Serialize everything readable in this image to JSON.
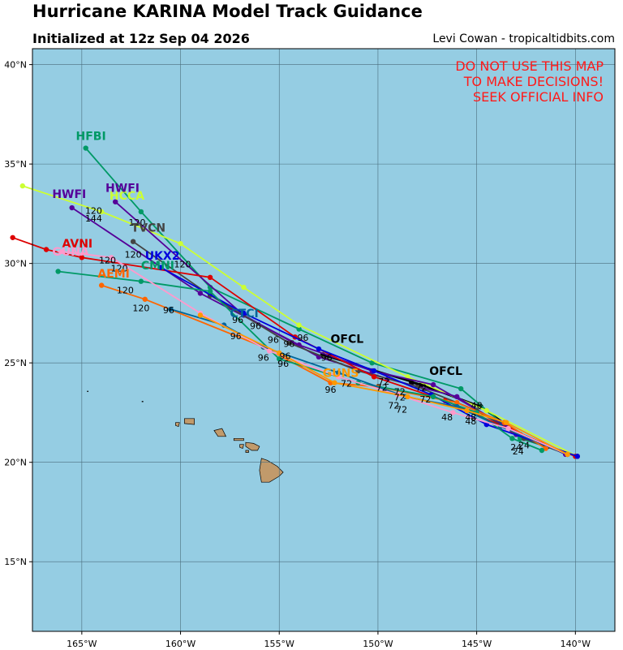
{
  "header": {
    "title": "Hurricane KARINA Model Track Guidance",
    "subtitle": "Initialized at 12z Sep 04 2026",
    "credit": "Levi Cowan - tropicaltidbits.com"
  },
  "warning": [
    "DO NOT USE THIS MAP",
    "TO MAKE DECISIONS!",
    "SEEK OFFICIAL INFO"
  ],
  "colors": {
    "ocean": "#95cde3",
    "land": "#c19a6b",
    "grid": "#4a6d7c",
    "warning": "#ff1a1a"
  },
  "map": {
    "lon_range": [
      -167.5,
      -138.0
    ],
    "lat_range": [
      11.5,
      40.8
    ],
    "lat_ticks": [
      {
        "value": 15,
        "label": "15°N"
      },
      {
        "value": 20,
        "label": "20°N"
      },
      {
        "value": 25,
        "label": "25°N"
      },
      {
        "value": 30,
        "label": "30°N"
      },
      {
        "value": 35,
        "label": "35°N"
      },
      {
        "value": 40,
        "label": "40°N"
      }
    ],
    "lon_ticks": [
      {
        "value": -165,
        "label": "165°W"
      },
      {
        "value": -160,
        "label": "160°W"
      },
      {
        "value": -155,
        "label": "155°W"
      },
      {
        "value": -150,
        "label": "150°W"
      },
      {
        "value": -145,
        "label": "145°W"
      },
      {
        "value": -140,
        "label": "140°W"
      }
    ]
  },
  "tracks": [
    {
      "name": "OFCL",
      "color": "#000000",
      "points": [
        [
          -140.4,
          20.4
        ],
        [
          -141.4,
          20.8
        ],
        [
          -142.8,
          21.4
        ],
        [
          -144.8,
          22.8
        ],
        [
          -147.8,
          23.9
        ],
        [
          -152.8,
          25.4
        ]
      ],
      "label_at": [
        -152.4,
        26.0
      ]
    },
    {
      "name": "OFCL",
      "color": "#000000",
      "points": [
        [
          -144.8,
          22.8
        ],
        [
          -147.8,
          23.9
        ],
        [
          -148.3,
          24.0
        ]
      ],
      "label_at": [
        -147.4,
        24.4
      ]
    },
    {
      "name": "HFBI",
      "color": "#009966",
      "points": [
        [
          -139.9,
          20.3
        ],
        [
          -142.8,
          21.2
        ],
        [
          -145.8,
          23.7
        ],
        [
          -150.3,
          25.0
        ],
        [
          -154.0,
          26.7
        ],
        [
          -158.5,
          28.8
        ],
        [
          -162.0,
          32.6
        ],
        [
          -164.8,
          35.8
        ]
      ],
      "label_at": [
        -165.3,
        36.2
      ]
    },
    {
      "name": "HCCA",
      "color": "#ccff33",
      "points": [
        [
          -139.9,
          20.3
        ],
        [
          -144.5,
          22.6
        ],
        [
          -148.5,
          24.3
        ],
        [
          -154.0,
          26.9
        ],
        [
          -156.8,
          28.8
        ],
        [
          -160.0,
          31.0
        ],
        [
          -164.0,
          32.6
        ],
        [
          -168.0,
          33.9
        ]
      ],
      "label_at": [
        -163.6,
        33.2
      ]
    },
    {
      "name": "HWFI",
      "color": "#550099",
      "points": [
        [
          -139.9,
          20.3
        ],
        [
          -143.0,
          21.4
        ],
        [
          -146.0,
          23.3
        ],
        [
          -149.5,
          24.2
        ],
        [
          -153.0,
          25.3
        ],
        [
          -156.8,
          27.4
        ],
        [
          -163.3,
          33.1
        ]
      ],
      "label_at": [
        -163.8,
        33.6
      ]
    },
    {
      "name": "HWFI",
      "color": "#550099",
      "points": [
        [
          -140.5,
          20.4
        ],
        [
          -143.5,
          21.8
        ],
        [
          -147.2,
          23.9
        ],
        [
          -150.3,
          24.6
        ],
        [
          -154.0,
          25.9
        ],
        [
          -159.0,
          28.5
        ],
        [
          -165.5,
          32.8
        ]
      ],
      "label_at": [
        -166.5,
        33.3
      ]
    },
    {
      "name": "TVCN",
      "color": "#444444",
      "points": [
        [
          -140.4,
          20.4
        ],
        [
          -142.6,
          21.2
        ],
        [
          -145.0,
          22.6
        ],
        [
          -148.0,
          23.8
        ],
        [
          -151.0,
          24.6
        ],
        [
          -154.5,
          26.0
        ],
        [
          -158.5,
          28.4
        ],
        [
          -162.4,
          31.1
        ]
      ],
      "label_at": [
        -162.5,
        31.6
      ]
    },
    {
      "name": "AVNI",
      "color": "#dd0000",
      "points": [
        [
          -140.0,
          20.3
        ],
        [
          -143.2,
          21.6
        ],
        [
          -146.6,
          23.1
        ],
        [
          -150.2,
          24.3
        ],
        [
          -154.2,
          26.3
        ],
        [
          -158.5,
          29.3
        ],
        [
          -165.0,
          30.3
        ],
        [
          -166.8,
          30.7
        ],
        [
          -168.5,
          31.3
        ]
      ],
      "label_at": [
        -166.0,
        30.8
      ]
    },
    {
      "name": "UKX2",
      "color": "#0000dd",
      "points": [
        [
          -139.9,
          20.3
        ],
        [
          -144.5,
          21.9
        ],
        [
          -147.3,
          23.4
        ],
        [
          -150.2,
          24.6
        ],
        [
          -153.0,
          25.7
        ],
        [
          -156.8,
          27.5
        ],
        [
          -161.0,
          29.8
        ]
      ],
      "label_at": [
        -161.8,
        30.2
      ]
    },
    {
      "name": "AEMI",
      "color": "#ff6600",
      "points": [
        [
          -141.5,
          20.7
        ],
        [
          -143.6,
          22.0
        ],
        [
          -146.0,
          23.0
        ],
        [
          -150.0,
          23.8
        ],
        [
          -152.4,
          24.0
        ],
        [
          -155.8,
          25.8
        ],
        [
          -161.8,
          28.2
        ],
        [
          -164.0,
          28.9
        ]
      ],
      "label_at": [
        -164.2,
        29.3
      ]
    },
    {
      "name": "CMNI",
      "color": "#009966",
      "points": [
        [
          -141.7,
          20.6
        ],
        [
          -143.2,
          21.2
        ],
        [
          -145.0,
          22.5
        ],
        [
          -147.2,
          23.3
        ],
        [
          -151.0,
          24.0
        ],
        [
          -155.0,
          25.2
        ],
        [
          -158.5,
          28.6
        ],
        [
          -162.0,
          29.1
        ],
        [
          -166.2,
          29.6
        ]
      ],
      "label_at": [
        -162.0,
        29.7
      ]
    },
    {
      "name": "CTCI",
      "color": "#006699",
      "points": [
        [
          -140.4,
          20.4
        ],
        [
          -143.8,
          21.8
        ],
        [
          -146.0,
          22.8
        ],
        [
          -148.6,
          23.3
        ],
        [
          -152.0,
          24.5
        ],
        [
          -155.8,
          25.8
        ],
        [
          -157.8,
          26.9
        ],
        [
          -160.5,
          27.7
        ]
      ],
      "label_at": [
        -157.5,
        27.3
      ]
    },
    {
      "name": "GUNA",
      "color": "#ff99cc",
      "points": [
        [
          -140.4,
          20.4
        ],
        [
          -143.4,
          21.7
        ],
        [
          -146.2,
          22.5
        ],
        [
          -149.0,
          23.4
        ],
        [
          -152.0,
          24.3
        ],
        [
          -155.5,
          25.6
        ],
        [
          -159.0,
          27.5
        ],
        [
          -163.5,
          30.3
        ],
        [
          -166.0,
          30.6
        ]
      ],
      "label_at": [
        -166.5,
        30.4
      ]
    },
    {
      "name": "GUNS",
      "color": "#ff9900",
      "points": [
        [
          -140.4,
          20.4
        ],
        [
          -143.5,
          22.0
        ],
        [
          -145.5,
          22.6
        ],
        [
          -148.5,
          23.3
        ],
        [
          -152.2,
          24.0
        ],
        [
          -155.0,
          25.5
        ],
        [
          -159.0,
          27.4
        ]
      ],
      "label_at": [
        -152.8,
        24.3
      ]
    }
  ],
  "hour_labels": [
    {
      "text": "24",
      "lon": -143.0,
      "lat": 20.6
    },
    {
      "text": "24",
      "lon": -142.6,
      "lat": 20.7
    },
    {
      "text": "24",
      "lon": -142.9,
      "lat": 20.4
    },
    {
      "text": "48",
      "lon": -146.5,
      "lat": 22.1
    },
    {
      "text": "48",
      "lon": -145.3,
      "lat": 22.1
    },
    {
      "text": "48",
      "lon": -145.3,
      "lat": 21.9
    },
    {
      "text": "48",
      "lon": -145.0,
      "lat": 22.7
    },
    {
      "text": "72",
      "lon": -151.6,
      "lat": 23.8
    },
    {
      "text": "72",
      "lon": -149.8,
      "lat": 23.6
    },
    {
      "text": "72",
      "lon": -149.7,
      "lat": 23.9
    },
    {
      "text": "72",
      "lon": -148.9,
      "lat": 23.4
    },
    {
      "text": "72",
      "lon": -148.9,
      "lat": 23.1
    },
    {
      "text": "72",
      "lon": -149.2,
      "lat": 22.7
    },
    {
      "text": "72",
      "lon": -148.8,
      "lat": 22.5
    },
    {
      "text": "72",
      "lon": -147.6,
      "lat": 23.0
    },
    {
      "text": "72",
      "lon": -147.8,
      "lat": 23.6
    },
    {
      "text": "96",
      "lon": -152.6,
      "lat": 25.1
    },
    {
      "text": "96",
      "lon": -152.4,
      "lat": 23.5
    },
    {
      "text": "96",
      "lon": -154.5,
      "lat": 25.8
    },
    {
      "text": "96",
      "lon": -154.7,
      "lat": 25.2
    },
    {
      "text": "96",
      "lon": -154.8,
      "lat": 24.8
    },
    {
      "text": "96",
      "lon": -155.8,
      "lat": 25.1
    },
    {
      "text": "96",
      "lon": -155.3,
      "lat": 26.0
    },
    {
      "text": "96",
      "lon": -153.8,
      "lat": 26.1
    },
    {
      "text": "96",
      "lon": -156.2,
      "lat": 26.7
    },
    {
      "text": "96",
      "lon": -157.2,
      "lat": 26.2
    },
    {
      "text": "96",
      "lon": -157.1,
      "lat": 27.0
    },
    {
      "text": "96",
      "lon": -160.6,
      "lat": 27.5
    },
    {
      "text": "120",
      "lon": -159.9,
      "lat": 29.8
    },
    {
      "text": "120",
      "lon": -162.4,
      "lat": 30.3
    },
    {
      "text": "120",
      "lon": -163.7,
      "lat": 30.0
    },
    {
      "text": "120",
      "lon": -163.1,
      "lat": 29.6
    },
    {
      "text": "120",
      "lon": -162.8,
      "lat": 28.5
    },
    {
      "text": "120",
      "lon": -162.0,
      "lat": 27.6
    },
    {
      "text": "120",
      "lon": -164.4,
      "lat": 32.5
    },
    {
      "text": "120",
      "lon": -162.2,
      "lat": 31.9
    },
    {
      "text": "144",
      "lon": -164.4,
      "lat": 32.1
    }
  ],
  "islands": [
    {
      "name": "Hawaii",
      "points": [
        [
          -155.9,
          20.2
        ],
        [
          -155.6,
          20.1
        ],
        [
          -155.1,
          19.8
        ],
        [
          -154.8,
          19.5
        ],
        [
          -155.0,
          19.3
        ],
        [
          -155.5,
          19.0
        ],
        [
          -155.9,
          19.0
        ],
        [
          -156.0,
          19.6
        ],
        [
          -155.9,
          20.2
        ]
      ]
    },
    {
      "name": "Maui",
      "points": [
        [
          -156.7,
          21.0
        ],
        [
          -156.3,
          20.95
        ],
        [
          -156.0,
          20.8
        ],
        [
          -156.1,
          20.6
        ],
        [
          -156.4,
          20.6
        ],
        [
          -156.7,
          20.8
        ]
      ]
    },
    {
      "name": "Molokai",
      "points": [
        [
          -157.3,
          21.2
        ],
        [
          -156.8,
          21.2
        ],
        [
          -156.8,
          21.1
        ],
        [
          -157.3,
          21.1
        ]
      ]
    },
    {
      "name": "Lanai",
      "points": [
        [
          -157.0,
          20.9
        ],
        [
          -156.8,
          20.9
        ],
        [
          -156.85,
          20.7
        ],
        [
          -157.0,
          20.75
        ]
      ]
    },
    {
      "name": "Kahoolawe",
      "points": [
        [
          -156.7,
          20.6
        ],
        [
          -156.55,
          20.6
        ],
        [
          -156.55,
          20.5
        ],
        [
          -156.7,
          20.5
        ]
      ]
    },
    {
      "name": "Oahu",
      "points": [
        [
          -158.3,
          21.6
        ],
        [
          -157.9,
          21.7
        ],
        [
          -157.7,
          21.3
        ],
        [
          -158.1,
          21.3
        ]
      ]
    },
    {
      "name": "Kauai",
      "points": [
        [
          -159.8,
          22.2
        ],
        [
          -159.3,
          22.2
        ],
        [
          -159.3,
          21.9
        ],
        [
          -159.8,
          21.95
        ]
      ]
    },
    {
      "name": "Niihau",
      "points": [
        [
          -160.25,
          22.0
        ],
        [
          -160.05,
          22.0
        ],
        [
          -160.1,
          21.8
        ],
        [
          -160.25,
          21.85
        ]
      ]
    },
    {
      "name": "Nihoa",
      "points": [
        [
          -161.95,
          23.07
        ],
        [
          -161.9,
          23.07
        ],
        [
          -161.9,
          23.04
        ],
        [
          -161.95,
          23.04
        ]
      ]
    },
    {
      "name": "Necker",
      "points": [
        [
          -164.72,
          23.58
        ],
        [
          -164.68,
          23.58
        ],
        [
          -164.68,
          23.55
        ],
        [
          -164.72,
          23.55
        ]
      ]
    }
  ]
}
